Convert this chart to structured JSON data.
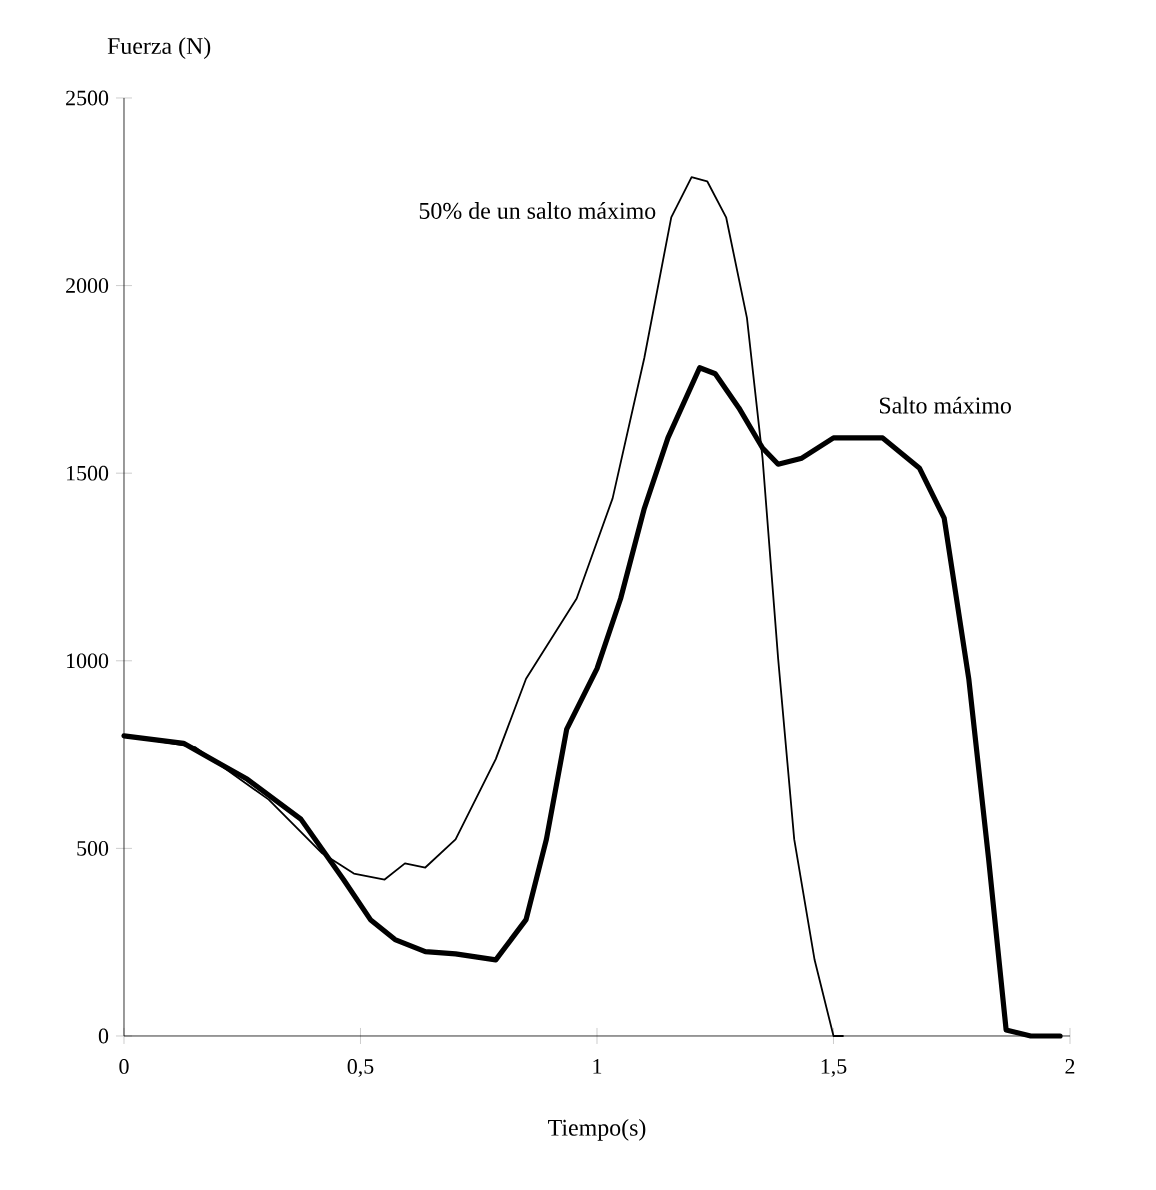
{
  "chart_data": {
    "type": "line",
    "xlabel": "Tiempo(s)",
    "ylabel": "Fuerza (N)",
    "xlim": [
      0,
      2
    ],
    "ylim": [
      0,
      2500
    ],
    "xticks": [
      0,
      {
        "value": 0.5,
        "label": "0,5"
      },
      1,
      {
        "value": 1.5,
        "label": "1,5"
      },
      2
    ],
    "yticks": [
      0,
      500,
      1000,
      1500,
      2000,
      2500
    ],
    "grid": false,
    "legend": false,
    "marker": "none",
    "line_style": "solid",
    "series": [
      {
        "name": "50% de un salto máximo",
        "color": "#000000",
        "x": [
          0,
          0.15,
          0.306,
          0.419,
          0.486,
          0.551,
          0.594,
          0.637,
          0.701,
          0.786,
          0.85,
          0.957,
          1.033,
          1.1,
          1.157,
          1.2,
          1.233,
          1.273,
          1.317,
          1.35,
          1.383,
          1.417,
          1.46,
          1.5,
          1.52
        ],
        "values": [
          800,
          770,
          630,
          487,
          433,
          417,
          460,
          449,
          524,
          738,
          952,
          1166,
          1433,
          1807,
          2182,
          2289,
          2278,
          2182,
          1914,
          1540,
          1005,
          524,
          203,
          0,
          0
        ]
      },
      {
        "name": "Salto máximo",
        "color": "#000000",
        "x": [
          0,
          0.126,
          0.261,
          0.374,
          0.464,
          0.521,
          0.573,
          0.637,
          0.701,
          0.786,
          0.85,
          0.893,
          0.936,
          1.0,
          1.05,
          1.1,
          1.15,
          1.217,
          1.25,
          1.3,
          1.35,
          1.383,
          1.433,
          1.5,
          1.604,
          1.682,
          1.734,
          1.786,
          1.828,
          1.865,
          1.917,
          1.979
        ],
        "values": [
          800,
          780,
          684,
          578,
          417,
          310,
          257,
          225,
          219,
          203,
          310,
          524,
          818,
          979,
          1166,
          1406,
          1594,
          1781,
          1765,
          1674,
          1567,
          1524,
          1540,
          1594,
          1594,
          1513,
          1380,
          952,
          471,
          16,
          0,
          0
        ]
      }
    ]
  }
}
